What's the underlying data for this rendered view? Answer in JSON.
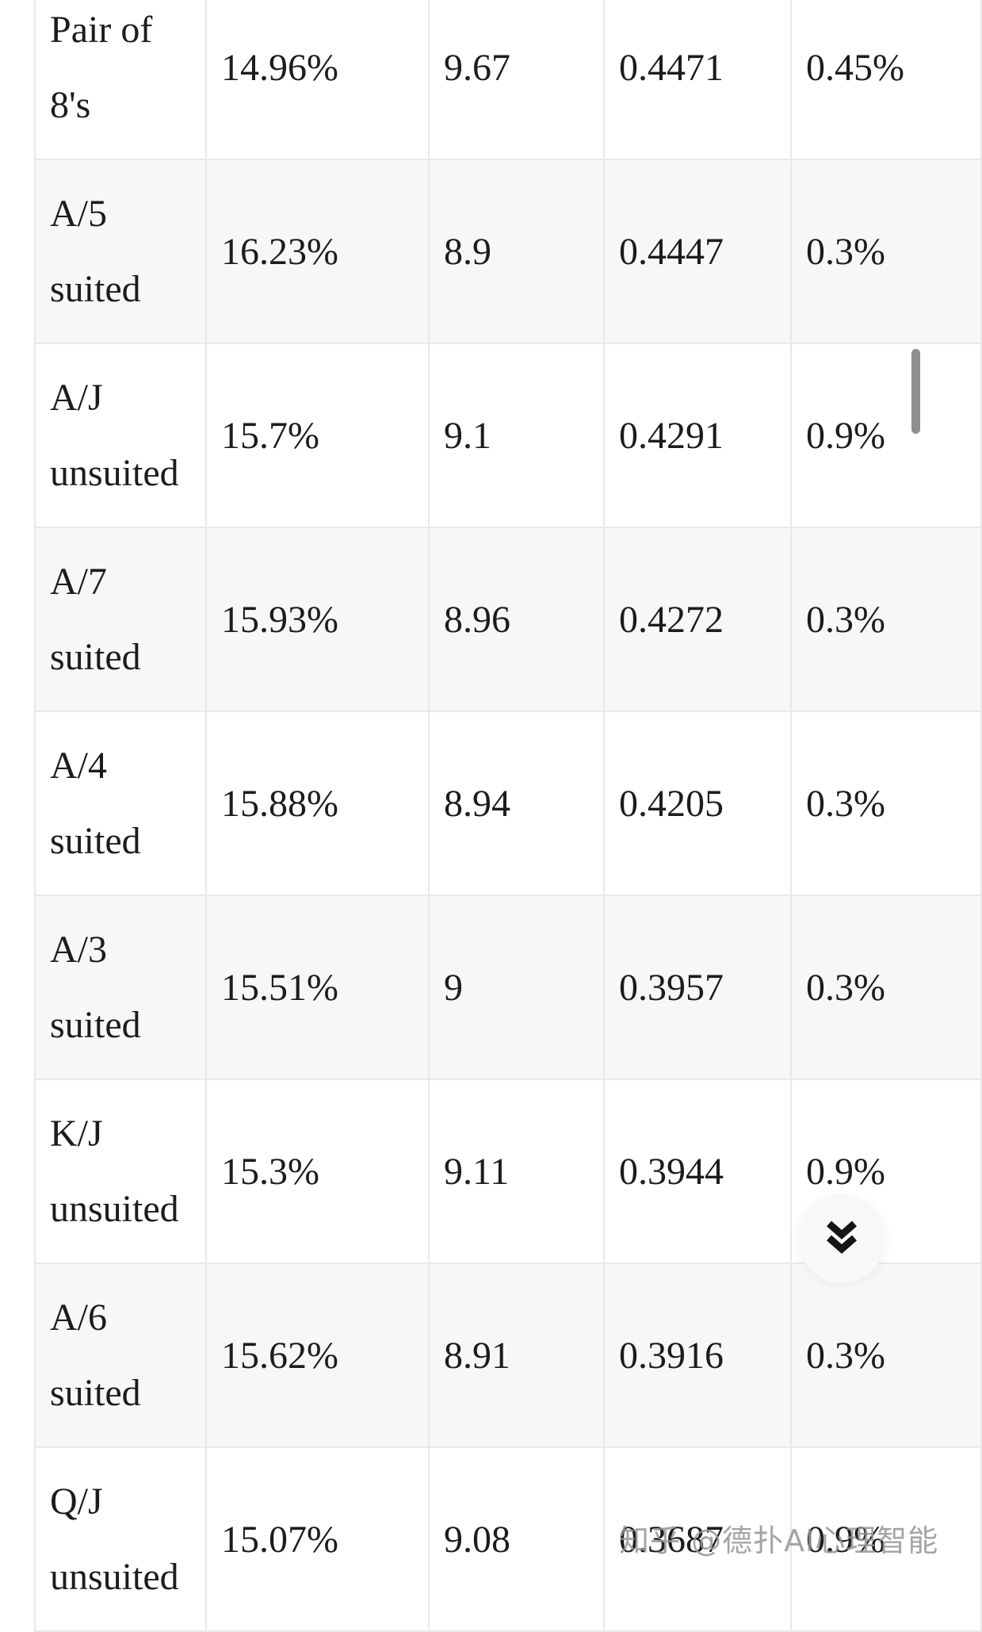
{
  "table": {
    "rows": [
      {
        "hand_lines": [
          "Pair of",
          "8's"
        ],
        "values": [
          "14.96%",
          "9.67",
          "0.4471",
          "0.45%"
        ]
      },
      {
        "hand_lines": [
          "A/5",
          "suited"
        ],
        "values": [
          "16.23%",
          "8.9",
          "0.4447",
          "0.3%"
        ]
      },
      {
        "hand_lines": [
          "A/J",
          "unsuited"
        ],
        "values": [
          "15.7%",
          "9.1",
          "0.4291",
          "0.9%"
        ]
      },
      {
        "hand_lines": [
          "A/7",
          "suited"
        ],
        "values": [
          "15.93%",
          "8.96",
          "0.4272",
          "0.3%"
        ]
      },
      {
        "hand_lines": [
          "A/4",
          "suited"
        ],
        "values": [
          "15.88%",
          "8.94",
          "0.4205",
          "0.3%"
        ]
      },
      {
        "hand_lines": [
          "A/3",
          "suited"
        ],
        "values": [
          "15.51%",
          "9",
          "0.3957",
          "0.3%"
        ]
      },
      {
        "hand_lines": [
          "K/J",
          "unsuited"
        ],
        "values": [
          "15.3%",
          "9.11",
          "0.3944",
          "0.9%"
        ]
      },
      {
        "hand_lines": [
          "A/6",
          "suited"
        ],
        "values": [
          "15.62%",
          "8.91",
          "0.3916",
          "0.3%"
        ]
      },
      {
        "hand_lines": [
          "Q/J",
          "unsuited"
        ],
        "values": [
          "15.07%",
          "9.08",
          "0.3687",
          "0.9%"
        ]
      }
    ]
  },
  "watermark": {
    "text": "知乎 @德扑AI心理智能"
  },
  "floating_button": {
    "icon": "double-chevron-down"
  },
  "colors": {
    "page_bg": "#ffffff",
    "row_alt": "#f7f7f7",
    "border": "#e9e9e9",
    "text": "#1c1c1c",
    "scrollbar": "#8f8f8f",
    "button_bg": "#f7f8f9"
  }
}
